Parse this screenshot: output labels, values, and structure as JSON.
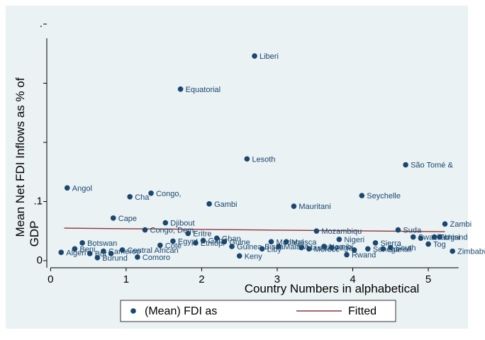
{
  "chart_data": {
    "type": "scatter",
    "xlabel": "Country Numbers in alphabetical",
    "ylabel_lines": [
      "Mean Net FDI Inflows as % of",
      "GDP"
    ],
    "xlim": [
      -0.05,
      5.45
    ],
    "ylim": [
      -0.012,
      0.4
    ],
    "x_ticks": [
      0,
      1,
      2,
      3,
      4,
      5
    ],
    "x_tick_labels": [
      "0",
      "1",
      "2",
      "3",
      "4",
      "5"
    ],
    "y_ticks": [
      0,
      0.1,
      0.2,
      0.3,
      0.4
    ],
    "y_tick_labels": [
      "0",
      ".1",
      "",
      "",
      "."
    ],
    "grid": false,
    "legend_position": "bottom",
    "legend": [
      {
        "label": "(Mean) FDI as",
        "kind": "marker"
      },
      {
        "label": "Fitted",
        "kind": "line"
      }
    ],
    "fitted_line": {
      "x": [
        0.18,
        5.22
      ],
      "y": [
        0.055,
        0.049
      ]
    },
    "colors": {
      "plot_background": "#eaf2f3",
      "page_background": "#ffffff",
      "marker": "#1a476f",
      "fitted": "#90353b",
      "label": "#1a476f",
      "axis": "#000000"
    },
    "points": [
      {
        "x": 0.14,
        "y": 0.014,
        "label": "Algeri"
      },
      {
        "x": 0.22,
        "y": 0.123,
        "label": "Angol"
      },
      {
        "x": 0.32,
        "y": 0.02,
        "label": "Beni"
      },
      {
        "x": 0.42,
        "y": 0.03,
        "label": "Botswan"
      },
      {
        "x": 0.52,
        "y": 0.012,
        "label": "Bur"
      },
      {
        "x": 0.62,
        "y": 0.005,
        "label": "Burund"
      },
      {
        "x": 0.7,
        "y": 0.016,
        "label": "Cameroo"
      },
      {
        "x": 0.8,
        "y": 0.012,
        "label": ""
      },
      {
        "x": 0.83,
        "y": 0.072,
        "label": "Cape"
      },
      {
        "x": 0.95,
        "y": 0.018,
        "label": "Central African"
      },
      {
        "x": 1.05,
        "y": 0.108,
        "label": "Cha"
      },
      {
        "x": 1.15,
        "y": 0.006,
        "label": "Comoro"
      },
      {
        "x": 1.25,
        "y": 0.052,
        "label": "Congo, Dem."
      },
      {
        "x": 1.33,
        "y": 0.114,
        "label": "Congo,"
      },
      {
        "x": 1.45,
        "y": 0.026,
        "label": "Cote"
      },
      {
        "x": 1.52,
        "y": 0.064,
        "label": "Djibout"
      },
      {
        "x": 1.62,
        "y": 0.033,
        "label": "Egypt"
      },
      {
        "x": 1.72,
        "y": 0.29,
        "label": "Equatorial"
      },
      {
        "x": 1.82,
        "y": 0.046,
        "label": "Eritre"
      },
      {
        "x": 1.92,
        "y": 0.03,
        "label": "Ethiopi"
      },
      {
        "x": 2.02,
        "y": 0.034,
        "label": "Gabo"
      },
      {
        "x": 2.1,
        "y": 0.096,
        "label": "Gambi"
      },
      {
        "x": 2.2,
        "y": 0.038,
        "label": "Ghan"
      },
      {
        "x": 2.3,
        "y": 0.032,
        "label": "Guine"
      },
      {
        "x": 2.4,
        "y": 0.024,
        "label": "Guinea-Bissa"
      },
      {
        "x": 2.5,
        "y": 0.008,
        "label": "Keny"
      },
      {
        "x": 2.6,
        "y": 0.172,
        "label": "Lesoth"
      },
      {
        "x": 2.7,
        "y": 0.346,
        "label": "Liberi"
      },
      {
        "x": 2.8,
        "y": 0.02,
        "label": "Liby"
      },
      {
        "x": 2.92,
        "y": 0.032,
        "label": "Madagasca"
      },
      {
        "x": 3.02,
        "y": 0.024,
        "label": "Malawi"
      },
      {
        "x": 3.12,
        "y": 0.032,
        "label": "Mal"
      },
      {
        "x": 3.22,
        "y": 0.092,
        "label": "Mauritani"
      },
      {
        "x": 3.32,
        "y": 0.022,
        "label": "Mauritius"
      },
      {
        "x": 3.42,
        "y": 0.02,
        "label": "Morocc"
      },
      {
        "x": 3.52,
        "y": 0.05,
        "label": "Mozambiqu"
      },
      {
        "x": 3.62,
        "y": 0.024,
        "label": "Namibi"
      },
      {
        "x": 3.72,
        "y": 0.022,
        "label": "Nige"
      },
      {
        "x": 3.82,
        "y": 0.036,
        "label": "Nigeri"
      },
      {
        "x": 3.92,
        "y": 0.01,
        "label": "Rwand"
      },
      {
        "x": 4.02,
        "y": 0.018,
        "label": ""
      },
      {
        "x": 4.12,
        "y": 0.11,
        "label": "Seychelle"
      },
      {
        "x": 4.2,
        "y": 0.02,
        "label": "Senega"
      },
      {
        "x": 4.3,
        "y": 0.03,
        "label": "Sierra"
      },
      {
        "x": 4.4,
        "y": 0.02,
        "label": "Somali"
      },
      {
        "x": 4.5,
        "y": 0.022,
        "label": "South"
      },
      {
        "x": 4.6,
        "y": 0.052,
        "label": "Suda"
      },
      {
        "x": 4.7,
        "y": 0.162,
        "label": "São Tomé &"
      },
      {
        "x": 4.8,
        "y": 0.04,
        "label": "Swazilan"
      },
      {
        "x": 4.9,
        "y": 0.038,
        "label": ""
      },
      {
        "x": 5.0,
        "y": 0.028,
        "label": "Tog"
      },
      {
        "x": 5.08,
        "y": 0.04,
        "label": "Tunisi"
      },
      {
        "x": 5.15,
        "y": 0.04,
        "label": "Ugand"
      },
      {
        "x": 5.22,
        "y": 0.062,
        "label": "Zambi"
      },
      {
        "x": 5.32,
        "y": 0.016,
        "label": "Zimbabw"
      }
    ]
  }
}
